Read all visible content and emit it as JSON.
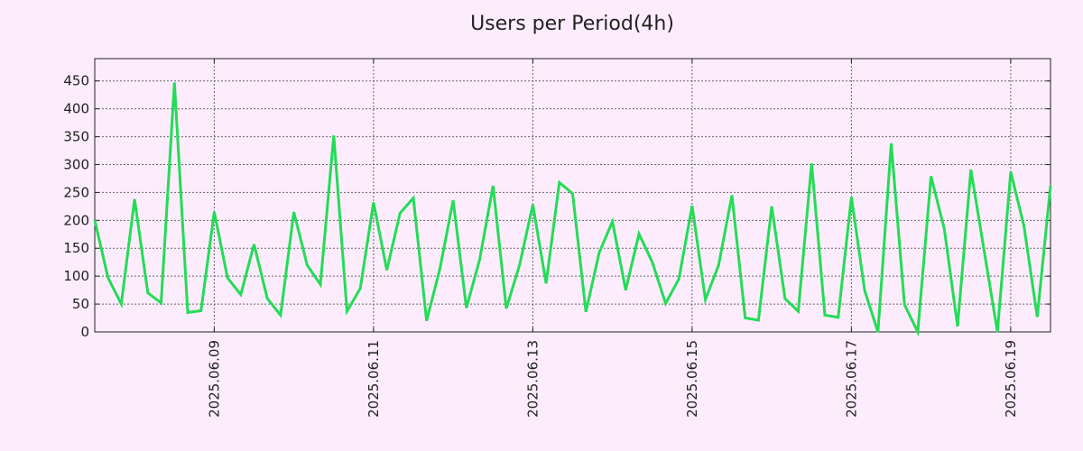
{
  "chart_data": {
    "type": "line",
    "title": "Users per Period(4h)",
    "xlabel": "",
    "ylabel": "",
    "ylim": [
      0,
      490
    ],
    "y_ticks": [
      0,
      50,
      100,
      150,
      200,
      250,
      300,
      350,
      400,
      450
    ],
    "x_ticks": [
      "2025.06.09",
      "2025.06.11",
      "2025.06.13",
      "2025.06.15",
      "2025.06.17",
      "2025.06.19"
    ],
    "x_start": "2025.06.07 12:00",
    "period_hours": 4,
    "grid": true,
    "line_color": "#22dd55",
    "series": [
      {
        "values": [
          200,
          97,
          50,
          238,
          70,
          52,
          447,
          35,
          38,
          215,
          97,
          67,
          157,
          60,
          30,
          215,
          120,
          85,
          352,
          37,
          78,
          232,
          111,
          213,
          240,
          20,
          113,
          236,
          43,
          130,
          262,
          42,
          120,
          228,
          87,
          268,
          248,
          36,
          142,
          198,
          75,
          176,
          125,
          51,
          95,
          226,
          58,
          120,
          245,
          25,
          21,
          225,
          60,
          37,
          302,
          30,
          26,
          242,
          74,
          0,
          338,
          49,
          0,
          279,
          185,
          10,
          291,
          145,
          0,
          287,
          190,
          27,
          262
        ]
      }
    ]
  }
}
